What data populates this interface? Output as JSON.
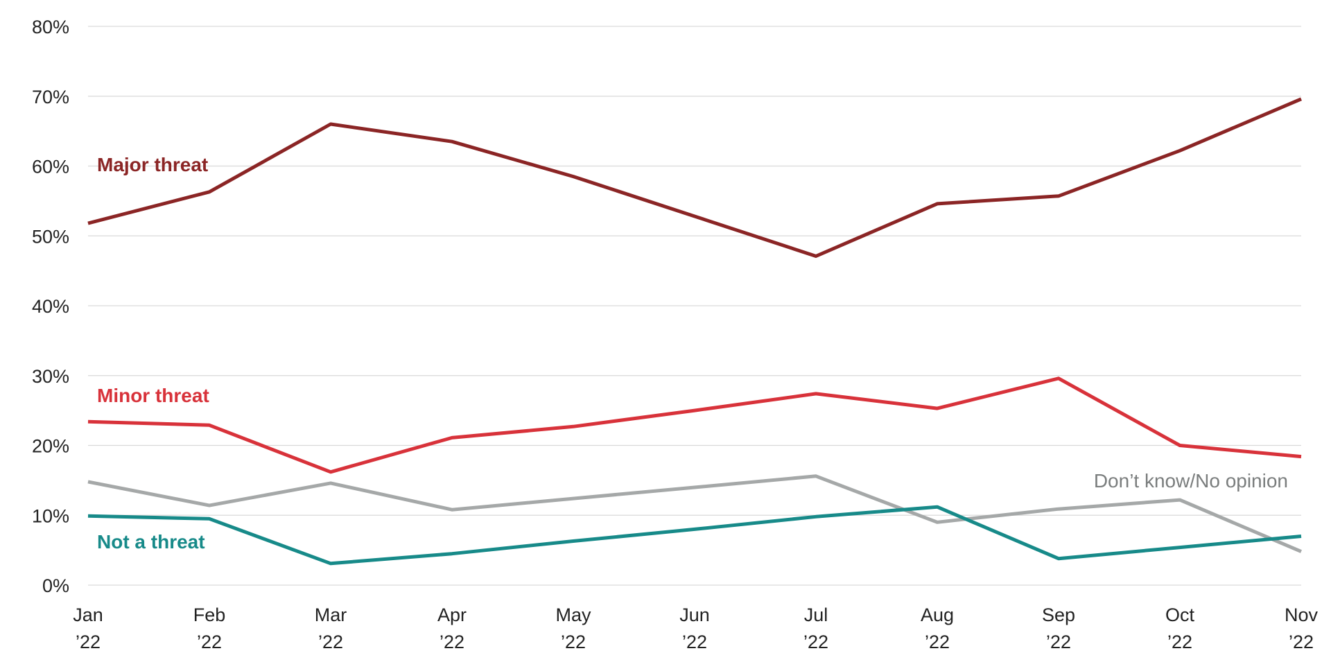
{
  "chart_data": {
    "type": "line",
    "title": "",
    "xlabel": "",
    "ylabel": "",
    "categories": [
      [
        "Jan",
        "’22"
      ],
      [
        "Feb",
        "’22"
      ],
      [
        "Mar",
        "’22"
      ],
      [
        "Apr",
        "’22"
      ],
      [
        "May",
        "’22"
      ],
      [
        "Jun",
        "’22"
      ],
      [
        "Jul",
        "’22"
      ],
      [
        "Aug",
        "’22"
      ],
      [
        "Sep",
        "’22"
      ],
      [
        "Oct",
        "’22"
      ],
      [
        "Nov",
        "’22"
      ]
    ],
    "ylim": [
      0,
      80
    ],
    "yticks": [
      0,
      10,
      20,
      30,
      40,
      50,
      60,
      70,
      80
    ],
    "ytick_labels": [
      "0%",
      "10%",
      "20%",
      "30%",
      "40%",
      "50%",
      "60%",
      "70%",
      "80%"
    ],
    "grid": true,
    "legend": "inline labels",
    "series": [
      {
        "name": "Major threat",
        "color": "#8b2525",
        "values": [
          51.8,
          56.3,
          66.0,
          63.5,
          58.5,
          52.8,
          47.1,
          54.6,
          55.7,
          62.2,
          69.6
        ]
      },
      {
        "name": "Minor threat",
        "color": "#d8323a",
        "values": [
          23.4,
          22.9,
          16.2,
          21.1,
          22.7,
          25.0,
          27.4,
          25.3,
          29.6,
          20.0,
          18.4
        ]
      },
      {
        "name": "Don’t know/No opinion",
        "color": "#a5a8a8",
        "values": [
          14.8,
          11.4,
          14.6,
          10.8,
          12.4,
          14.0,
          15.6,
          9.0,
          10.9,
          12.2,
          4.8
        ]
      },
      {
        "name": "Not a threat",
        "color": "#178a89",
        "values": [
          9.9,
          9.5,
          3.1,
          4.5,
          6.3,
          8.0,
          9.8,
          11.2,
          3.8,
          5.4,
          7.0
        ]
      }
    ]
  }
}
